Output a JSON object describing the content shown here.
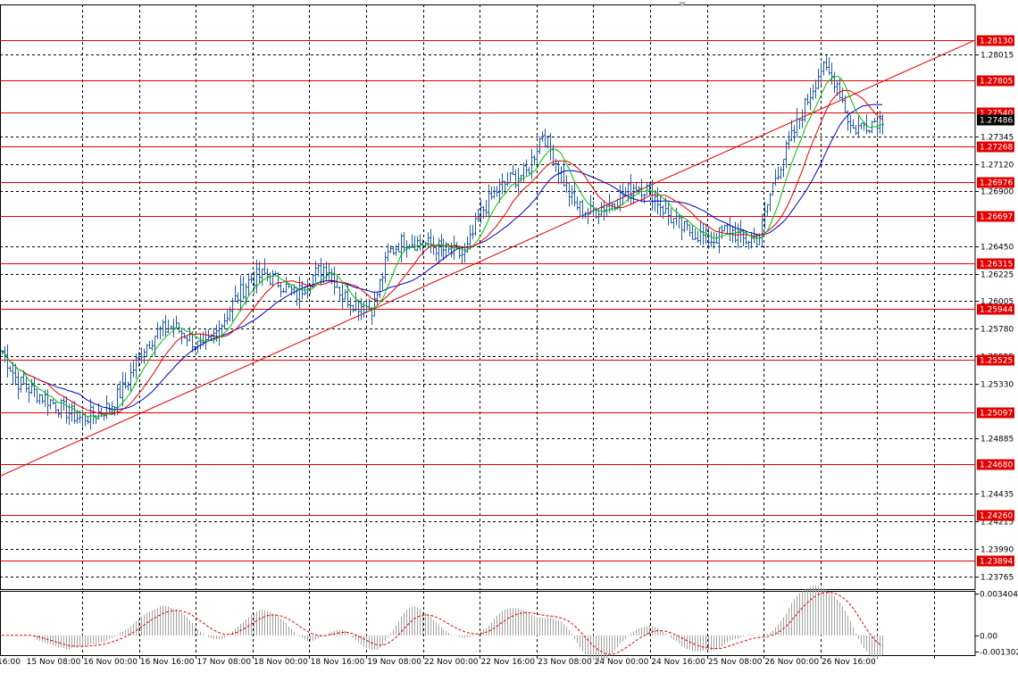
{
  "chart_data": {
    "type": "candlestick",
    "price_axis": {
      "range": [
        1.2366,
        1.2842
      ],
      "tick_labels": [
        "1.28015",
        "1.27345",
        "1.27120",
        "1.26900",
        "1.26450",
        "1.26225",
        "1.26005",
        "1.25780",
        "1.25555",
        "1.25330",
        "1.24885",
        "1.24435",
        "1.24215",
        "1.23990",
        "1.23765"
      ],
      "current_price": "1.27486"
    },
    "time_axis": {
      "labels": [
        "16:00",
        "15 Nov 08:00",
        "16 Nov 00:00",
        "16 Nov 16:00",
        "17 Nov 08:00",
        "18 Nov 00:00",
        "18 Nov 16:00",
        "19 Nov 08:00",
        "22 Nov 00:00",
        "22 Nov 16:00",
        "23 Nov 08:00",
        "24 Nov 00:00",
        "24 Nov 16:00",
        "25 Nov 08:00",
        "26 Nov 00:00",
        "26 Nov 16:00"
      ]
    },
    "horizontal_levels": [
      "1.28130",
      "1.27805",
      "1.27540",
      "1.27268",
      "1.26976",
      "1.26697",
      "1.26315",
      "1.25944",
      "1.25525",
      "1.25097",
      "1.24680",
      "1.24260",
      "1.23894"
    ],
    "trendline": {
      "from_price": 1.2458,
      "to_price": 1.2813
    },
    "price_path": [
      1.256,
      1.2535,
      1.2527,
      1.252,
      1.2512,
      1.2505,
      1.2508,
      1.2515,
      1.2532,
      1.256,
      1.2575,
      1.258,
      1.2572,
      1.256,
      1.2578,
      1.26,
      1.2618,
      1.2622,
      1.2615,
      1.2605,
      1.262,
      1.263,
      1.2605,
      1.2598,
      1.2595,
      1.264,
      1.265,
      1.2648,
      1.2645,
      1.264,
      1.2638,
      1.2672,
      1.269,
      1.27,
      1.2705,
      1.2738,
      1.271,
      1.268,
      1.2672,
      1.2678,
      1.2685,
      1.2695,
      1.269,
      1.2672,
      1.266,
      1.2655,
      1.265,
      1.266,
      1.265,
      1.2652,
      1.27,
      1.273,
      1.276,
      1.279,
      1.278,
      1.274,
      1.2745,
      1.275
    ],
    "ma_fast_color": "#00c000",
    "ma_mid_color": "#e00000",
    "ma_slow_color": "#0000c0",
    "level_color": "#e00000",
    "candle_color": "#1e5aa8",
    "indicator": {
      "tick_labels": [
        "0.003404",
        "0.00",
        "-0.001302"
      ],
      "range": [
        -0.0016,
        0.0036
      ],
      "signal_color": "#e00000"
    }
  }
}
